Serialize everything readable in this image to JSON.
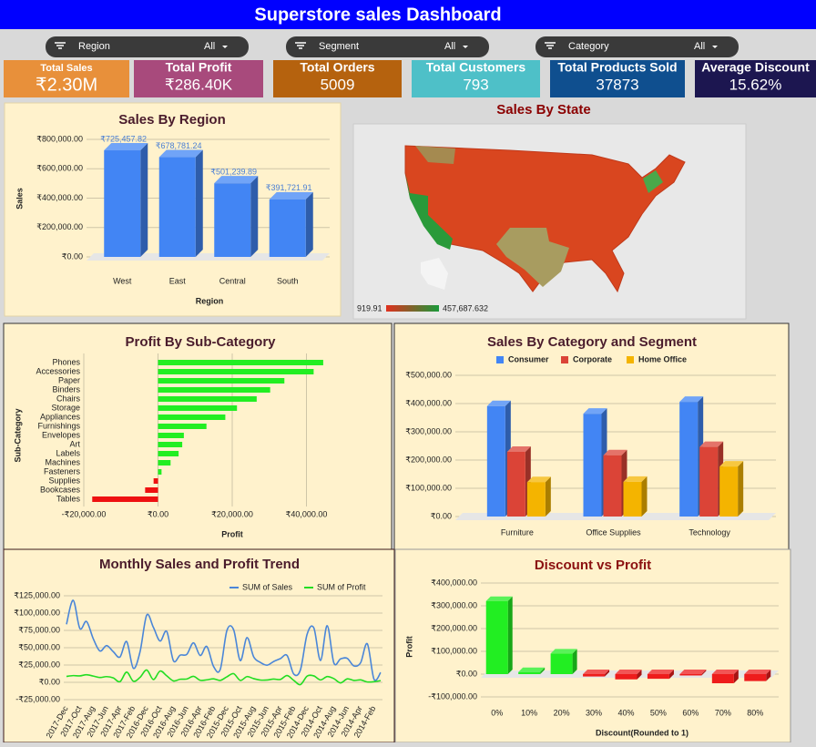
{
  "title": "Superstore sales Dashboard",
  "filters": [
    {
      "label": "Region",
      "value": "All"
    },
    {
      "label": "Segment",
      "value": "All"
    },
    {
      "label": "Category",
      "value": "All"
    }
  ],
  "kpis": [
    {
      "label": "Total Sales",
      "value": "₹2.30M",
      "color": "#e8903a"
    },
    {
      "label": "Total Profit",
      "value": "₹286.40K",
      "color": "#a84a7c"
    },
    {
      "label": "Total Orders",
      "value": "5009",
      "color": "#b5620e"
    },
    {
      "label": "Total Customers",
      "value": "793",
      "color": "#4ec0c8"
    },
    {
      "label": "Total Products Sold",
      "value": "37873",
      "color": "#0f4f8f"
    },
    {
      "label": "Average Discount",
      "value": "15.62%",
      "color": "#1c1650"
    }
  ],
  "chart_data": [
    {
      "type": "bar",
      "title": "Sales By Region",
      "x_label": "Region",
      "y_label": "Sales",
      "categories": [
        "West",
        "East",
        "Central",
        "South"
      ],
      "values": [
        725457.82,
        678781.24,
        501239.89,
        391721.91
      ],
      "value_labels": [
        "₹725,457.82",
        "₹678,781.24",
        "₹501,239.89",
        "₹391,721.91"
      ],
      "color": "#4285f4",
      "ylim": [
        0,
        800000
      ],
      "yticks": [
        {
          "value": 0,
          "label": "₹0.00"
        },
        {
          "value": 200000,
          "label": "₹200,000.00"
        },
        {
          "value": 400000,
          "label": "₹400,000.00"
        },
        {
          "value": 600000,
          "label": "₹600,000.00"
        },
        {
          "value": 800000,
          "label": "₹800,000.00"
        }
      ],
      "grid": true
    },
    {
      "type": "map",
      "title": "Sales By State",
      "colorbar_ticks": [
        919.91,
        {
          "value": 457687.632,
          "label": "457,687.632"
        }
      ],
      "colors": [
        "#e0301e",
        "#1a9a3a"
      ]
    },
    {
      "type": "barh",
      "title": "Profit By Sub-Category",
      "x_label": "Profit",
      "y_label": "Sub-Category",
      "categories": [
        "Phones",
        "Accessories",
        "Paper",
        "Binders",
        "Chairs",
        "Storage",
        "Appliances",
        "Furnishings",
        "Envelopes",
        "Art",
        "Labels",
        "Machines",
        "Fasteners",
        "Supplies",
        "Bookcases",
        "Tables"
      ],
      "values": [
        44516,
        41937,
        34053,
        30222,
        26590,
        21279,
        18138,
        13059,
        6964,
        6528,
        5546,
        3385,
        950,
        -1189,
        -3473,
        -17725
      ],
      "color": "#22ee22",
      "negative_color": "#ee1111",
      "xlim": [
        -20000,
        60000
      ],
      "xticks": [
        {
          "value": -20000,
          "label": "-₹20,000.00"
        },
        {
          "value": 0,
          "label": "₹0.00"
        },
        {
          "value": 20000,
          "label": "₹20,000.00"
        },
        {
          "value": 40000,
          "label": "₹40,000.00"
        }
      ],
      "grid": true
    },
    {
      "type": "bar",
      "title": "Sales By Category and Segment",
      "categories": [
        "Furniture",
        "Office Supplies",
        "Technology"
      ],
      "series": [
        {
          "name": "Consumer",
          "color": "#4285f4",
          "values": [
            391049,
            363952,
            406040
          ]
        },
        {
          "name": "Corporate",
          "color": "#db4437",
          "values": [
            229019,
            217065,
            246450
          ]
        },
        {
          "name": "Home Office",
          "color": "#f4b400",
          "values": [
            121930,
            122855,
            177065
          ]
        }
      ],
      "ylim": [
        0,
        500000
      ],
      "yticks": [
        {
          "value": 0,
          "label": "₹0.00"
        },
        {
          "value": 100000,
          "label": "₹100,000.00"
        },
        {
          "value": 200000,
          "label": "₹200,000.00"
        },
        {
          "value": 300000,
          "label": "₹300,000.00"
        },
        {
          "value": 400000,
          "label": "₹400,000.00"
        },
        {
          "value": 500000,
          "label": "₹500,000.00"
        }
      ],
      "grid": true
    },
    {
      "type": "line",
      "title": "Monthly Sales and Profit Trend",
      "categories": [
        "2017-Dec",
        null,
        "2017-Oct",
        null,
        "2017-Aug",
        null,
        "2017-Jun",
        null,
        "2017-Apr",
        null,
        "2017-Feb",
        null,
        "2016-Dec",
        null,
        "2016-Oct",
        null,
        "2016-Aug",
        null,
        "2016-Jun",
        null,
        "2016-Apr",
        null,
        "2016-Feb",
        null,
        "2015-Dec",
        null,
        "2015-Oct",
        null,
        "2015-Aug",
        null,
        "2015-Jun",
        null,
        "2015-Apr",
        null,
        "2015-Feb",
        null,
        "2014-Dec",
        null,
        "2014-Oct",
        null,
        "2014-Aug",
        null,
        "2014-Jun",
        null,
        "2014-Apr",
        null,
        "2014-Feb",
        null
      ],
      "series": [
        {
          "name": "SUM of Sales",
          "color": "#4a86d8",
          "values": [
            83829,
            118448,
            77777,
            87867,
            63121,
            45264,
            52982,
            44261,
            36522,
            58872,
            20301,
            43971,
            96999,
            79412,
            59688,
            73410,
            31115,
            39262,
            40345,
            56988,
            38750,
            51716,
            22979,
            18542,
            74920,
            75973,
            31405,
            64596,
            36898,
            28765,
            24797,
            30132,
            34195,
            38726,
            11951,
            18174,
            69546,
            78629,
            31453,
            81777,
            27909,
            33946,
            34595,
            23648,
            28295,
            55691,
            4520,
            14237
          ]
        },
        {
          "name": "SUM of Profit",
          "color": "#22dd22",
          "values": [
            8483,
            9690,
            9275,
            10992,
            9041,
            6953,
            8223,
            6343,
            933,
            14752,
            1614,
            7140,
            17885,
            4011,
            16243,
            9329,
            2063,
            4432,
            4750,
            8662,
            2978,
            3611,
            5004,
            2825,
            8016,
            12474,
            2817,
            8210,
            5355,
            3288,
            3336,
            4668,
            4187,
            9732,
            2814,
            -3281,
            8983,
            9292,
            3448,
            8328,
            5318,
            -841,
            4977,
            2739,
            3489,
            499,
            862,
            2450
          ]
        }
      ],
      "ylim": [
        -25000,
        125000
      ],
      "yticks": [
        {
          "value": -25000,
          "label": "-₹25,000.00"
        },
        {
          "value": 0,
          "label": "₹0.00"
        },
        {
          "value": 25000,
          "label": "₹25,000.00"
        },
        {
          "value": 50000,
          "label": "₹50,000.00"
        },
        {
          "value": 75000,
          "label": "₹75,000.00"
        },
        {
          "value": 100000,
          "label": "₹100,000.00"
        },
        {
          "value": 125000,
          "label": "₹125,000.00"
        }
      ],
      "grid": true
    },
    {
      "type": "bar",
      "title": "Discount vs Profit",
      "x_label": "Discount(Rounded to 1)",
      "y_label": "Profit",
      "categories": [
        "0%",
        "10%",
        "20%",
        "30%",
        "40%",
        "50%",
        "60%",
        "70%",
        "80%"
      ],
      "values": [
        320988,
        9029,
        90338,
        -10369,
        -23057,
        -20506,
        -5944,
        -40075,
        -30540
      ],
      "color": "#22ee22",
      "negative_color": "#ee1c1c",
      "ylim": [
        -100000,
        400000
      ],
      "yticks": [
        {
          "value": -100000,
          "label": "-₹100,000.00"
        },
        {
          "value": 0,
          "label": "₹0.00"
        },
        {
          "value": 100000,
          "label": "₹100,000.00"
        },
        {
          "value": 200000,
          "label": "₹200,000.00"
        },
        {
          "value": 300000,
          "label": "₹300,000.00"
        },
        {
          "value": 400000,
          "label": "₹400,000.00"
        }
      ],
      "grid": true
    }
  ]
}
